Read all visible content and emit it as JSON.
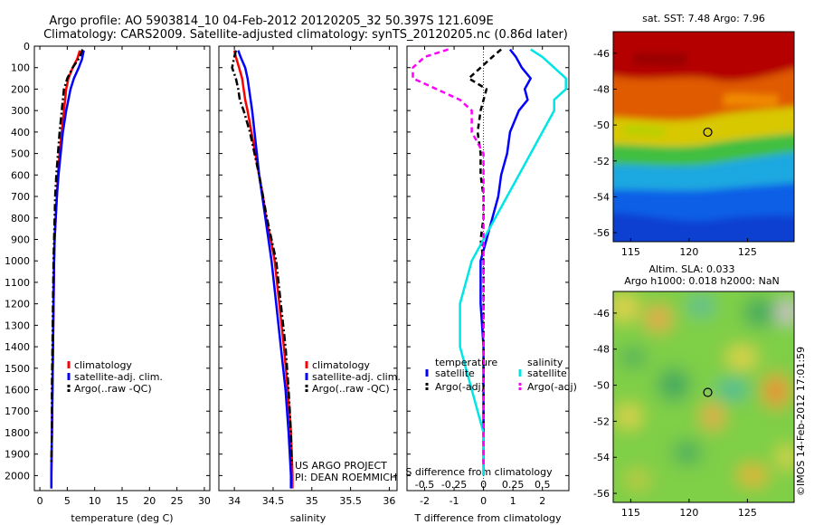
{
  "header": {
    "title_line1": "Argo profile: AO 5903814_10 04-Feb-2012 20120205_32 50.397S 121.609E",
    "title_line2": "Climatology: CARS2009. Satellite-adjusted climatology: synTS_20120205.nc (0.86d later)"
  },
  "credit": {
    "project": "US ARGO PROJECT",
    "pi": "PI: DEAN ROEMMICH",
    "imos": "©IMOS 14-Feb-2012 17:01:59"
  },
  "colors": {
    "climatology": "#ff0000",
    "satellite": "#0000ff",
    "argo": "#000000",
    "satellite_s": "#00e5e5",
    "argo_s": "#ff00ff"
  },
  "chart_data": [
    {
      "type": "line",
      "id": "temperature",
      "xlabel": "temperature (deg C)",
      "xlim": [
        -1,
        31
      ],
      "ylim": [
        2070,
        0
      ],
      "xticks": [
        0,
        5,
        10,
        15,
        20,
        25,
        30
      ],
      "yticks": [
        0,
        100,
        200,
        300,
        400,
        500,
        600,
        700,
        800,
        900,
        1000,
        1100,
        1200,
        1300,
        1400,
        1500,
        1600,
        1700,
        1800,
        1900,
        2000
      ],
      "legend": {
        "items": [
          "climatology",
          "satellite-adj. clim.",
          "Argo(..raw -QC)"
        ]
      },
      "series": [
        {
          "name": "climatology",
          "color": "#ff0000",
          "style": "solid",
          "depth": [
            20,
            60,
            100,
            150,
            200,
            300,
            400,
            500,
            600,
            700,
            800,
            900,
            1000,
            1200,
            1400,
            1600,
            1800,
            2000,
            2060
          ],
          "values": [
            7.3,
            6.8,
            6.0,
            5.2,
            4.8,
            4.4,
            4.0,
            3.6,
            3.3,
            3.1,
            2.9,
            2.7,
            2.6,
            2.5,
            2.4,
            2.3,
            2.2,
            2.1,
            2.1
          ]
        },
        {
          "name": "satellite-adj. clim.",
          "color": "#0000ff",
          "style": "solid",
          "depth": [
            20,
            60,
            100,
            150,
            200,
            300,
            400,
            500,
            600,
            700,
            800,
            900,
            1000,
            1200,
            1400,
            1600,
            1800,
            2000,
            2060
          ],
          "values": [
            8.0,
            7.7,
            7.1,
            6.2,
            5.6,
            4.8,
            4.2,
            3.8,
            3.4,
            3.1,
            2.9,
            2.7,
            2.6,
            2.5,
            2.4,
            2.3,
            2.2,
            2.1,
            2.1
          ]
        },
        {
          "name": "Argo(..raw -QC)",
          "color": "#000000",
          "style": "dashdot",
          "depth": [
            15,
            50,
            100,
            150,
            200,
            300,
            400,
            500,
            600,
            700,
            800,
            900,
            1000,
            1200,
            1400,
            1600,
            1800,
            1950
          ],
          "values": [
            7.8,
            7.3,
            6.0,
            5.0,
            4.4,
            4.0,
            3.6,
            3.3,
            3.0,
            2.8,
            2.7,
            2.6,
            2.5,
            2.4,
            2.3,
            2.2,
            2.2,
            2.1
          ]
        }
      ]
    },
    {
      "type": "line",
      "id": "salinity",
      "xlabel": "salinity",
      "xlim": [
        33.8,
        36.1
      ],
      "ylim": [
        2070,
        0
      ],
      "xticks": [
        34,
        34.5,
        35,
        35.5,
        36
      ],
      "legend": {
        "items": [
          "climatology",
          "satellite-adj. clim.",
          "Argo(..raw -QC)"
        ]
      },
      "series": [
        {
          "name": "climatology",
          "color": "#ff0000",
          "style": "solid",
          "depth": [
            20,
            50,
            100,
            150,
            200,
            250,
            300,
            400,
            500,
            600,
            700,
            800,
            900,
            1000,
            1200,
            1400,
            1600,
            1800,
            2000,
            2060
          ],
          "values": [
            34.0,
            34.02,
            34.06,
            34.1,
            34.12,
            34.14,
            34.17,
            34.22,
            34.27,
            34.32,
            34.37,
            34.41,
            34.47,
            34.52,
            34.58,
            34.64,
            34.69,
            34.73,
            34.75,
            34.75
          ]
        },
        {
          "name": "satellite-adj. clim.",
          "color": "#0000ff",
          "style": "solid",
          "depth": [
            20,
            50,
            100,
            150,
            200,
            250,
            300,
            400,
            500,
            600,
            700,
            800,
            900,
            1000,
            1200,
            1400,
            1600,
            1800,
            2000,
            2060
          ],
          "values": [
            34.05,
            34.08,
            34.14,
            34.17,
            34.19,
            34.21,
            34.23,
            34.26,
            34.29,
            34.32,
            34.36,
            34.4,
            34.44,
            34.48,
            34.54,
            34.6,
            34.66,
            34.7,
            34.73,
            34.73
          ]
        },
        {
          "name": "Argo(..raw -QC)",
          "color": "#000000",
          "style": "dashdot",
          "depth": [
            20,
            50,
            100,
            150,
            200,
            250,
            300,
            400,
            500,
            600,
            700,
            800,
            900,
            1000,
            1200,
            1400,
            1600,
            1800,
            1950
          ],
          "values": [
            34.02,
            34.0,
            33.97,
            34.02,
            34.05,
            34.07,
            34.12,
            34.2,
            34.26,
            34.32,
            34.37,
            34.42,
            34.48,
            34.54,
            34.6,
            34.66,
            34.7,
            34.73,
            34.74
          ]
        }
      ]
    },
    {
      "type": "line",
      "id": "difference",
      "xlabel": "T difference from climatology",
      "x2label": "S difference from climatology",
      "xlim": [
        -2.6,
        2.9
      ],
      "ylim": [
        2070,
        0
      ],
      "xticks": [
        -2,
        -1,
        0,
        1,
        2
      ],
      "x2ticks": [
        -0.5,
        -0.25,
        0,
        0.25,
        0.5
      ],
      "x2ticklabels": [
        "-0.5",
        "-0.25",
        "0",
        "0.25",
        "0.5"
      ],
      "legend": {
        "temperature_header": "temperature",
        "salinity_header": "salinity",
        "items": [
          "satellite",
          "Argo(-adj)",
          "satellite",
          "Argo(-adj)"
        ]
      },
      "series": [
        {
          "name": "satellite",
          "group": "temperature",
          "color": "#0000ff",
          "style": "solid",
          "depth": [
            15,
            50,
            100,
            150,
            200,
            250,
            300,
            400,
            500,
            600,
            700,
            800,
            900,
            1000,
            1200,
            1400,
            1600,
            1800,
            2000
          ],
          "values": [
            0.9,
            1.1,
            1.3,
            1.6,
            1.4,
            1.5,
            1.2,
            0.9,
            0.8,
            0.6,
            0.5,
            0.3,
            0.1,
            -0.1,
            -0.1,
            0.0,
            0.0,
            0.0,
            0.0
          ]
        },
        {
          "name": "Argo(-adj)",
          "group": "temperature",
          "color": "#000000",
          "style": "dashed",
          "depth": [
            15,
            50,
            100,
            150,
            200,
            300,
            400,
            500,
            600,
            700,
            800,
            900,
            1000,
            1200,
            1400,
            1600,
            1800,
            1950
          ],
          "values": [
            0.6,
            0.3,
            -0.1,
            -0.5,
            0.1,
            -0.1,
            -0.2,
            -0.1,
            -0.1,
            0.0,
            0.0,
            -0.1,
            0.0,
            0.0,
            0.0,
            0.0,
            0.0,
            0.0
          ]
        },
        {
          "name": "satellite",
          "group": "salinity",
          "color": "#00e5e5",
          "style": "solid",
          "depth": [
            15,
            50,
            100,
            150,
            200,
            250,
            300,
            400,
            500,
            600,
            700,
            800,
            900,
            1000,
            1200,
            1400,
            1600,
            1800,
            2000
          ],
          "values": [
            0.4,
            0.5,
            0.6,
            0.7,
            0.7,
            0.6,
            0.6,
            0.5,
            0.4,
            0.3,
            0.2,
            0.1,
            0.0,
            -0.1,
            -0.2,
            -0.2,
            -0.1,
            0.0,
            0.0
          ]
        },
        {
          "name": "Argo(-adj)",
          "group": "salinity",
          "color": "#ff00ff",
          "style": "dashed",
          "depth": [
            15,
            50,
            100,
            150,
            200,
            250,
            300,
            400,
            500,
            600,
            700,
            800,
            900,
            1000,
            1200,
            1400,
            1600,
            1800,
            1950
          ],
          "values": [
            -0.3,
            -0.5,
            -0.6,
            -0.6,
            -0.4,
            -0.2,
            -0.1,
            -0.1,
            0.0,
            0.0,
            0.0,
            0.0,
            0.0,
            0.0,
            0.0,
            0.0,
            0.0,
            0.0,
            0.0
          ]
        }
      ]
    },
    {
      "type": "heatmap",
      "id": "sst_map",
      "title": "sat. SST: 7.48  Argo: 7.96",
      "xlim": [
        113.5,
        129
      ],
      "ylim": [
        -56.5,
        -44.8
      ],
      "xticks": [
        115,
        120,
        125
      ],
      "yticks": [
        -46,
        -48,
        -50,
        -52,
        -54,
        -56
      ],
      "marker": {
        "lon": 121.6,
        "lat": -50.4
      }
    },
    {
      "type": "heatmap",
      "id": "sla_map",
      "title_line1": "Altim. SLA: 0.033",
      "title_line2": "Argo h1000: 0.018  h2000: NaN",
      "xlim": [
        113.5,
        129
      ],
      "ylim": [
        -56.5,
        -44.8
      ],
      "xticks": [
        115,
        120,
        125
      ],
      "yticks": [
        -46,
        -48,
        -50,
        -52,
        -54,
        -56
      ],
      "marker": {
        "lon": 121.6,
        "lat": -50.4
      }
    }
  ]
}
